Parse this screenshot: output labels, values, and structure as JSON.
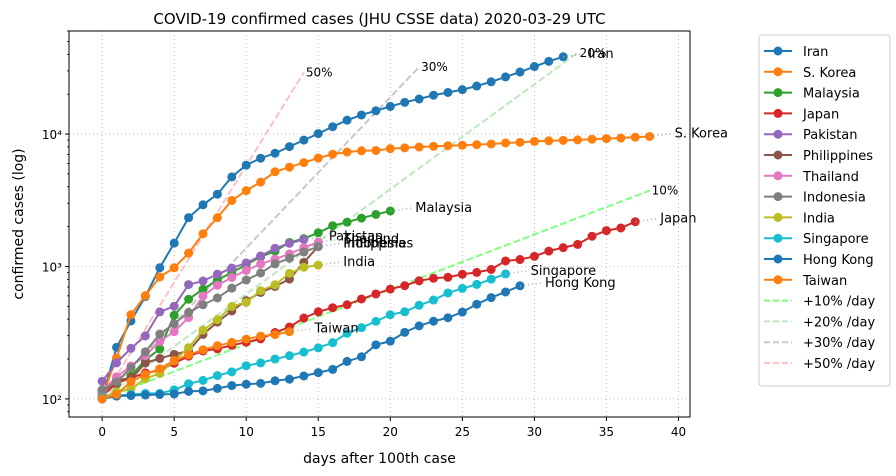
{
  "chart_data": {
    "type": "line",
    "title": "COVID-19 confirmed cases (JHU CSSE data) 2020-03-29 UTC",
    "xlabel": "days after 100th case",
    "ylabel": "confirmed cases (log)",
    "xlim": [
      -2.3,
      40.8
    ],
    "ylim": [
      73,
      60000
    ],
    "y_scale": "log",
    "grid": true,
    "legend_placement": "outside-right",
    "x_ticks": [
      0,
      5,
      10,
      15,
      20,
      25,
      30,
      35,
      40
    ],
    "x_tick_labels": [
      "0",
      "5",
      "10",
      "15",
      "20",
      "25",
      "30",
      "35",
      "40"
    ],
    "y_ticks": [
      100,
      1000,
      10000
    ],
    "y_tick_labels": [
      "10²",
      "10³",
      "10⁴"
    ],
    "series": [
      {
        "name": "Iran",
        "color": "#1f77b4",
        "label": "Iran",
        "values": [
          100,
          245,
          388,
          593,
          978,
          1501,
          2336,
          2922,
          3513,
          4747,
          5823,
          6566,
          7161,
          8042,
          9000,
          10075,
          11364,
          12729,
          13938,
          14991,
          16169,
          17361,
          18407,
          19644,
          20610,
          21638,
          23049,
          24811,
          27017,
          29406,
          32332,
          35408,
          38309
        ]
      },
      {
        "name": "S. Korea",
        "color": "#ff7f0e",
        "label": "S. Korea",
        "values": [
          104,
          204,
          433,
          602,
          833,
          977,
          1261,
          1766,
          2337,
          3150,
          3736,
          4335,
          5186,
          5621,
          6088,
          6593,
          7041,
          7314,
          7478,
          7513,
          7755,
          7869,
          7979,
          8086,
          8162,
          8236,
          8320,
          8413,
          8565,
          8652,
          8799,
          8897,
          8961,
          9037,
          9137,
          9241,
          9332,
          9478,
          9583
        ]
      },
      {
        "name": "Malaysia",
        "color": "#2ca02c",
        "label": "Malaysia",
        "values": [
          117,
          129,
          149,
          197,
          238,
          428,
          566,
          673,
          790,
          900,
          1030,
          1183,
          1306,
          1518,
          1624,
          1796,
          2031,
          2161,
          2320,
          2470,
          2626
        ]
      },
      {
        "name": "Japan",
        "color": "#d62728",
        "label": "Japan",
        "values": [
          105,
          132,
          144,
          157,
          164,
          186,
          210,
          230,
          239,
          254,
          268,
          284,
          317,
          349,
          408,
          455,
          488,
          514,
          568,
          620,
          675,
          716,
          780,
          814,
          829,
          873,
          902,
          950,
          1101,
          1128,
          1193,
          1307,
          1387,
          1468,
          1693,
          1866,
          1953,
          2178
        ]
      },
      {
        "name": "Pakistan",
        "color": "#9467bd",
        "label": "Pakistan",
        "values": [
          136,
          187,
          241,
          299,
          454,
          501,
          730,
          776,
          875,
          972,
          1063,
          1201,
          1373,
          1495,
          1597
        ]
      },
      {
        "name": "Philippines",
        "color": "#8c564b",
        "label": "Philippines",
        "values": [
          111,
          140,
          142,
          187,
          202,
          217,
          230,
          307,
          380,
          462,
          552,
          636,
          707,
          803,
          1075,
          1418
        ]
      },
      {
        "name": "Thailand",
        "color": "#e377c2",
        "label": "Thailand",
        "values": [
          114,
          147,
          177,
          212,
          272,
          322,
          411,
          599,
          721,
          827,
          934,
          1045,
          1136,
          1245,
          1388,
          1524
        ]
      },
      {
        "name": "Indonesia",
        "color": "#7f7f7f",
        "label": "Indonesia",
        "values": [
          117,
          134,
          172,
          227,
          309,
          369,
          450,
          514,
          579,
          686,
          790,
          893,
          1046,
          1155,
          1285,
          1414
        ]
      },
      {
        "name": "India",
        "color": "#bcbd22",
        "label": "India",
        "values": [
          102,
          113,
          119,
          142,
          156,
          194,
          244,
          330,
          396,
          499,
          536,
          657,
          727,
          887,
          987,
          1024
        ]
      },
      {
        "name": "Singapore",
        "color": "#17becf",
        "label": "Singapore",
        "values": [
          102,
          106,
          108,
          110,
          110,
          117,
          130,
          138,
          150,
          160,
          178,
          187,
          200,
          212,
          226,
          243,
          266,
          313,
          345,
          385,
          432,
          455,
          509,
          558,
          631,
          683,
          732,
          802,
          879
        ]
      },
      {
        "name": "Hong Kong",
        "color": "#1f77b4",
        "label": "Hong Kong",
        "values": [
          100,
          105,
          106,
          107,
          108,
          109,
          114,
          115,
          120,
          126,
          129,
          131,
          137,
          141,
          149,
          158,
          167,
          192,
          208,
          256,
          273,
          318,
          356,
          386,
          410,
          453,
          519,
          582,
          642,
          715
        ]
      },
      {
        "name": "Taiwan",
        "color": "#ff7f0e",
        "label": "Taiwan",
        "values": [
          100,
          108,
          135,
          153,
          169,
          195,
          215,
          235,
          252,
          267,
          283,
          298,
          306,
          322
        ]
      }
    ],
    "reference_lines": [
      {
        "name": "+10% /day",
        "color": "#7fff7f",
        "label": "10%",
        "days": 38
      },
      {
        "name": "+20% /day",
        "color": "#bfe8bf",
        "label": "20%",
        "days": 33
      },
      {
        "name": "+30% /day",
        "color": "#c8c8c8",
        "label": "30%",
        "days": 22
      },
      {
        "name": "+50% /day",
        "color": "#ffc0c0",
        "label": "50%",
        "days": 14
      }
    ]
  }
}
